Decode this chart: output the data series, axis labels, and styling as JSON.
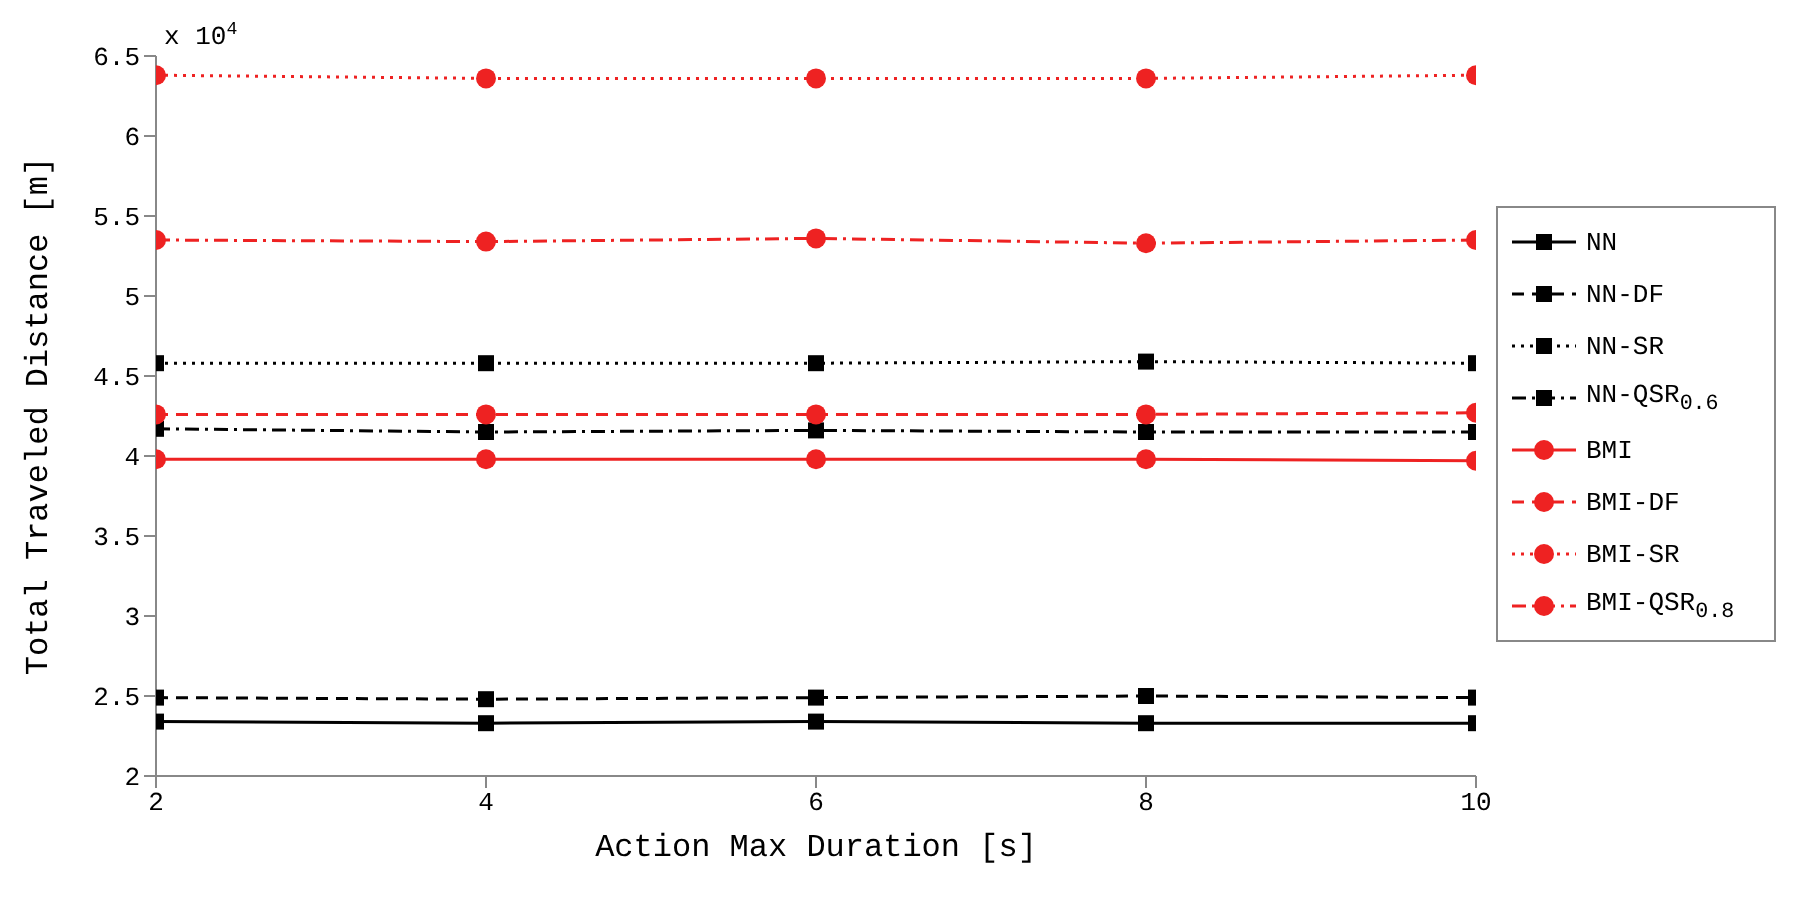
{
  "chart_data": {
    "type": "line",
    "xlabel": "Action Max Duration [s]",
    "ylabel": "Total Traveled Distance [m]",
    "annotations": [
      "x 10$^{4}$"
    ],
    "x": [
      2,
      4,
      6,
      8,
      10
    ],
    "xlim": [
      2,
      10
    ],
    "xticks": [
      2,
      4,
      6,
      8,
      10
    ],
    "ylim": [
      2,
      6.5
    ],
    "yticks": [
      2,
      2.5,
      3,
      3.5,
      4,
      4.5,
      5,
      5.5,
      6,
      6.5
    ],
    "grid": false,
    "legend": "right",
    "series": [
      {
        "name": "NN",
        "color": "#000000",
        "marker": "square",
        "line_style": "solid",
        "values": [
          2.34,
          2.33,
          2.34,
          2.33,
          2.33
        ]
      },
      {
        "name": "NN-DF",
        "color": "#000000",
        "marker": "square",
        "line_style": "dashed",
        "values": [
          2.49,
          2.48,
          2.49,
          2.5,
          2.49
        ]
      },
      {
        "name": "NN-SR",
        "color": "#000000",
        "marker": "square",
        "line_style": "dotted",
        "values": [
          4.58,
          4.58,
          4.58,
          4.59,
          4.58
        ]
      },
      {
        "name": "NN-QSR$_{0.6}$",
        "color": "#000000",
        "marker": "square",
        "line_style": "dashdot",
        "values": [
          4.17,
          4.15,
          4.16,
          4.15,
          4.15
        ]
      },
      {
        "name": "BMI",
        "color": "#ee2222",
        "marker": "circle",
        "line_style": "solid",
        "values": [
          3.98,
          3.98,
          3.98,
          3.98,
          3.97
        ]
      },
      {
        "name": "BMI-DF",
        "color": "#ee2222",
        "marker": "circle",
        "line_style": "dashed",
        "values": [
          4.26,
          4.26,
          4.26,
          4.26,
          4.27
        ]
      },
      {
        "name": "BMI-SR",
        "color": "#ee2222",
        "marker": "circle",
        "line_style": "dotted",
        "values": [
          6.38,
          6.36,
          6.36,
          6.36,
          6.38
        ]
      },
      {
        "name": "BMI-QSR$_{0.8}$",
        "color": "#ee2222",
        "marker": "circle",
        "line_style": "dashdot",
        "values": [
          5.35,
          5.34,
          5.36,
          5.33,
          5.35
        ]
      }
    ]
  }
}
